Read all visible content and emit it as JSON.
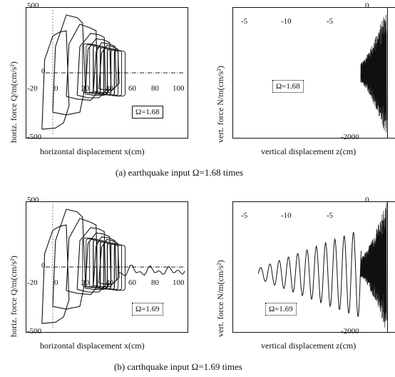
{
  "chart_data": [
    {
      "type": "line",
      "ylabel": "horiz. force  Q/m(cm/s²)",
      "xlabel": "horizontal displacement  x(cm)",
      "xlim": [
        -20,
        100
      ],
      "ylim": [
        -500,
        500
      ],
      "xticks": [
        "-20",
        "0",
        "20",
        "40",
        "60",
        "80",
        "100"
      ],
      "yticks": [
        "500",
        "0",
        "-500"
      ],
      "box_label": "Ω=1.68",
      "series": [
        {
          "x": [
            -5,
            -2,
            8,
            15,
            20,
            25,
            30,
            35,
            40,
            45,
            48,
            45,
            30,
            20,
            10,
            0,
            -5
          ],
          "y": [
            -400,
            250,
            460,
            430,
            380,
            330,
            280,
            260,
            240,
            220,
            100,
            -150,
            -180,
            -200,
            -350,
            -420,
            -450
          ]
        }
      ]
    },
    {
      "type": "line",
      "ylabel": "vert. force  N/m(cm/s²)",
      "xlabel": "vertical displacement  z(cm)",
      "xlim": [
        -15,
        1
      ],
      "ylim": [
        -2000,
        0
      ],
      "xticks": [
        "-5",
        "-10",
        "-5",
        "0"
      ],
      "yticks": [
        "-2000"
      ],
      "box_label": "Ω=1.68",
      "series": [
        {
          "x": [
            -3,
            -0.2
          ],
          "y": [
            -1000,
            -1000
          ]
        }
      ]
    },
    {
      "type": "line",
      "ylabel": "horiz. force  Q/m(cm/s²)",
      "xlabel": "horizontal displacement  x(cm)",
      "xlim": [
        -20,
        100
      ],
      "ylim": [
        -500,
        500
      ],
      "xticks": [
        "-20",
        "0",
        "20",
        "40",
        "60",
        "80",
        "100"
      ],
      "yticks": [
        "500",
        "0",
        "-500"
      ],
      "box_label": "Ω=1.69",
      "series": [
        {
          "x": [
            -5,
            -2,
            8,
            15,
            20,
            25,
            30,
            35,
            40,
            45,
            50,
            60,
            70,
            80,
            90,
            100
          ],
          "y": [
            -400,
            250,
            460,
            430,
            380,
            330,
            280,
            260,
            240,
            220,
            150,
            -20,
            -80,
            -60,
            -50,
            -40
          ]
        }
      ]
    },
    {
      "type": "line",
      "ylabel": "vert. force  N/m(cm/s²)",
      "xlabel": "vertical displacement  z(cm)",
      "xlim": [
        -15,
        1
      ],
      "ylim": [
        -2000,
        0
      ],
      "xticks": [
        "-5",
        "-10",
        "-5",
        "0"
      ],
      "yticks": [
        "-2000"
      ],
      "box_label": "Ω=1.69",
      "series": [
        {
          "x": [
            -12.5,
            -1
          ],
          "y": [
            -1100,
            -1100
          ]
        }
      ]
    }
  ],
  "captions": {
    "a": "(a)  earthquake input Ω=1.68 times",
    "b": "(b)  carthquake input Ω=1.69 times"
  }
}
